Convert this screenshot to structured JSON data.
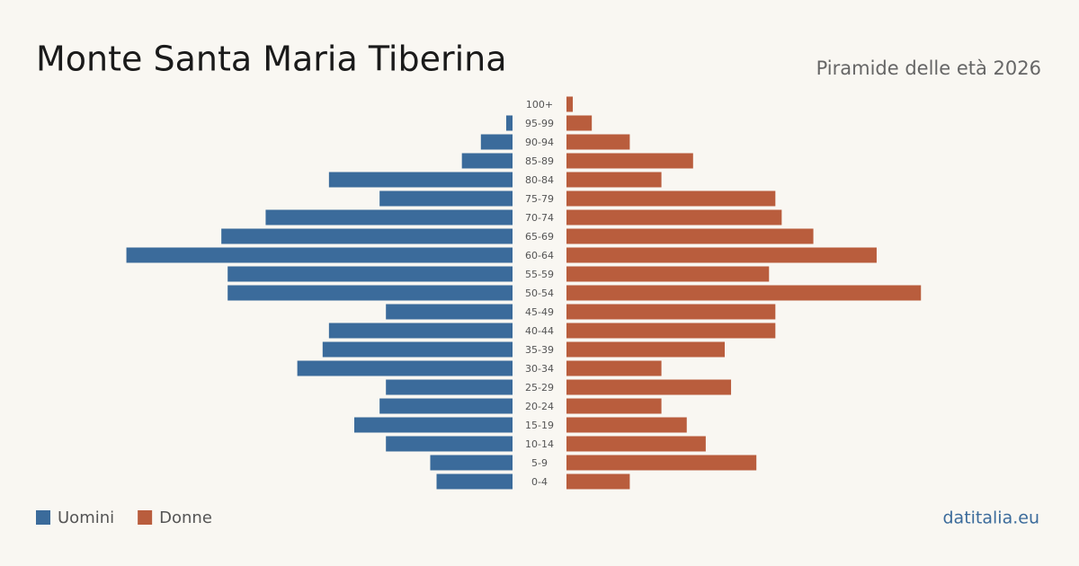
{
  "chart_data": {
    "type": "pyramid",
    "title": "Monte Santa Maria Tiberina",
    "subtitle": "Piramide delle età 2026",
    "categories": [
      "100+",
      "95-99",
      "90-94",
      "85-89",
      "80-84",
      "75-79",
      "70-74",
      "65-69",
      "60-64",
      "55-59",
      "50-54",
      "45-49",
      "40-44",
      "35-39",
      "30-34",
      "25-29",
      "20-24",
      "15-19",
      "10-14",
      "5-9",
      "0-4"
    ],
    "series": [
      {
        "name": "Uomini",
        "color": "#3b6b9b",
        "values": [
          0,
          1,
          5,
          8,
          29,
          21,
          39,
          46,
          61,
          45,
          45,
          20,
          29,
          30,
          34,
          20,
          21,
          25,
          20,
          13,
          12
        ]
      },
      {
        "name": "Donne",
        "color": "#b95d3d",
        "values": [
          1,
          4,
          10,
          20,
          15,
          33,
          34,
          39,
          49,
          32,
          56,
          33,
          33,
          25,
          15,
          26,
          15,
          19,
          22,
          30,
          10
        ]
      }
    ],
    "source": "datitalia.eu"
  }
}
